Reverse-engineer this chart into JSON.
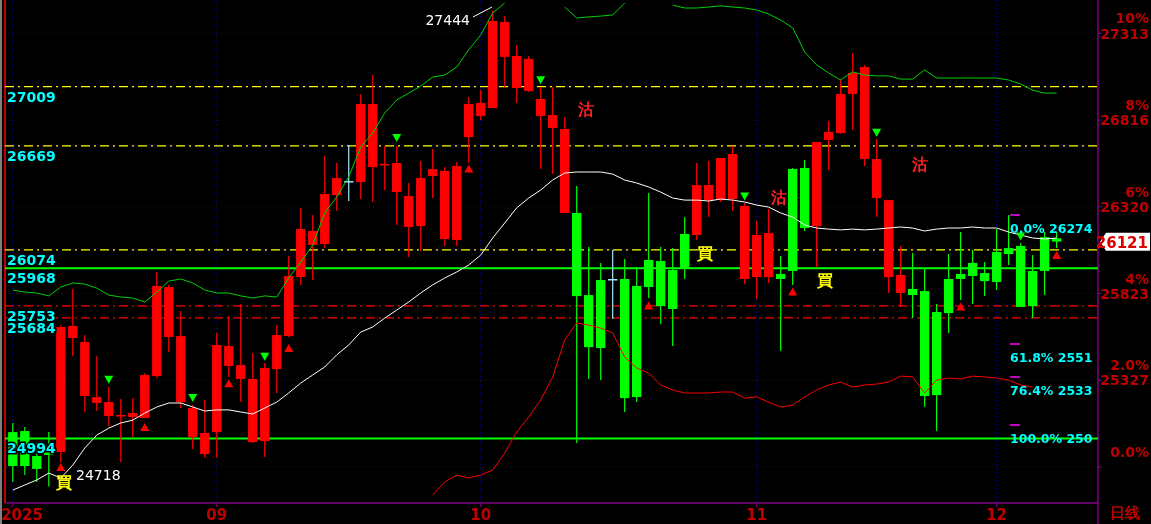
{
  "chart_data": {
    "type": "candlestick",
    "categories": [
      "2025",
      null,
      null,
      null,
      null,
      null,
      null,
      null,
      null,
      null,
      null,
      null,
      null,
      null,
      null,
      null,
      null,
      "09",
      null,
      null,
      null,
      null,
      null,
      null,
      null,
      null,
      null,
      null,
      null,
      null,
      null,
      null,
      null,
      null,
      null,
      null,
      null,
      null,
      null,
      "10",
      null,
      null,
      null,
      null,
      null,
      null,
      null,
      null,
      null,
      null,
      null,
      null,
      null,
      null,
      null,
      null,
      null,
      null,
      null,
      null,
      null,
      null,
      "11",
      null,
      null,
      null,
      null,
      null,
      null,
      null,
      null,
      null,
      null,
      null,
      null,
      null,
      null,
      null,
      null,
      null,
      null,
      null,
      "12",
      null,
      null,
      null,
      null,
      null
    ],
    "ohlc": [
      [
        25030,
        25082,
        24744,
        24836
      ],
      [
        25036,
        25059,
        24784,
        24836
      ],
      [
        24893,
        24968,
        24744,
        24819
      ],
      [
        24933,
        25030,
        24718,
        24899
      ],
      [
        24916,
        25643,
        24859,
        25632
      ],
      [
        25569,
        25850,
        25466,
        25638
      ],
      [
        25237,
        25586,
        25145,
        25546
      ],
      [
        25197,
        25466,
        25151,
        25231
      ],
      [
        25122,
        25288,
        25065,
        25202
      ],
      [
        25128,
        25220,
        24859,
        25128
      ],
      [
        25116,
        25225,
        25002,
        25139
      ],
      [
        25111,
        25368,
        25111,
        25357
      ],
      [
        25351,
        25947,
        25340,
        25867
      ],
      [
        25575,
        25873,
        25489,
        25861
      ],
      [
        25202,
        25724,
        25168,
        25580
      ],
      [
        25002,
        25185,
        24933,
        25168
      ],
      [
        24904,
        25214,
        24882,
        25025
      ],
      [
        25030,
        25598,
        24882,
        25529
      ],
      [
        25409,
        25695,
        25346,
        25523
      ],
      [
        25334,
        25764,
        25202,
        25414
      ],
      [
        24973,
        25483,
        24968,
        25334
      ],
      [
        24979,
        25426,
        24887,
        25397
      ],
      [
        25391,
        25643,
        25254,
        25586
      ],
      [
        25580,
        26039,
        25575,
        25924
      ],
      [
        25918,
        26314,
        25873,
        26193
      ],
      [
        26102,
        26273,
        25901,
        26182
      ],
      [
        26107,
        26611,
        26084,
        26394
      ],
      [
        26388,
        26571,
        26296,
        26485
      ],
      [
        26468,
        26674,
        26354,
        26468
      ],
      [
        26463,
        26967,
        26365,
        26909
      ],
      [
        26548,
        27075,
        26348,
        26909
      ],
      [
        26566,
        26669,
        26417,
        26566
      ],
      [
        26405,
        26669,
        26216,
        26571
      ],
      [
        26205,
        26457,
        26033,
        26382
      ],
      [
        26210,
        26583,
        26067,
        26485
      ],
      [
        26497,
        26652,
        26371,
        26537
      ],
      [
        26136,
        26548,
        26096,
        26526
      ],
      [
        26130,
        26577,
        26096,
        26554
      ],
      [
        26720,
        26949,
        26571,
        26909
      ],
      [
        26841,
        26989,
        26818,
        26915
      ],
      [
        26886,
        27444,
        26886,
        27385
      ],
      [
        27179,
        27413,
        27007,
        27379
      ],
      [
        27001,
        27247,
        26915,
        27184
      ],
      [
        26984,
        27184,
        26978,
        27167
      ],
      [
        26841,
        27007,
        26537,
        26938
      ],
      [
        26772,
        27007,
        26508,
        26846
      ],
      [
        26285,
        26835,
        26285,
        26766
      ],
      [
        26285,
        26440,
        24968,
        25809
      ],
      [
        25815,
        26090,
        25334,
        25517
      ],
      [
        25901,
        25999,
        25328,
        25512
      ],
      [
        25907,
        26073,
        25678,
        25907
      ],
      [
        25907,
        26021,
        25145,
        25225
      ],
      [
        25867,
        25976,
        25202,
        25231
      ],
      [
        26016,
        26400,
        25798,
        25861
      ],
      [
        26010,
        26090,
        25649,
        25752
      ],
      [
        25958,
        26084,
        25523,
        25735
      ],
      [
        26165,
        26262,
        25907,
        25970
      ],
      [
        26159,
        26571,
        26130,
        26445
      ],
      [
        26359,
        26583,
        26262,
        26445
      ],
      [
        26359,
        26600,
        26348,
        26600
      ],
      [
        26365,
        26669,
        26296,
        26623
      ],
      [
        25907,
        26342,
        25878,
        26325
      ],
      [
        25918,
        26239,
        25792,
        26159
      ],
      [
        25918,
        26308,
        25884,
        26170
      ],
      [
        25936,
        26039,
        25494,
        25907
      ],
      [
        26537,
        26543,
        25873,
        25953
      ],
      [
        26543,
        26589,
        26182,
        26199
      ],
      [
        26210,
        26692,
        25976,
        26692
      ],
      [
        26703,
        26812,
        26531,
        26749
      ],
      [
        26743,
        27052,
        26737,
        26967
      ],
      [
        26967,
        27201,
        26760,
        27087
      ],
      [
        26594,
        27133,
        26554,
        27121
      ],
      [
        26371,
        26709,
        26262,
        26594
      ],
      [
        25918,
        26359,
        25827,
        26359
      ],
      [
        25827,
        26096,
        25747,
        25930
      ],
      [
        25850,
        26056,
        25683,
        25815
      ],
      [
        25838,
        25964,
        25174,
        25237
      ],
      [
        25718,
        25764,
        25036,
        25242
      ],
      [
        25907,
        26050,
        25598,
        25712
      ],
      [
        25936,
        26176,
        25787,
        25907
      ],
      [
        25999,
        26073,
        25764,
        25924
      ],
      [
        25941,
        26004,
        25810,
        25895
      ],
      [
        26062,
        26193,
        25844,
        25890
      ],
      [
        26084,
        26273,
        25987,
        26050
      ],
      [
        26096,
        26113,
        25747,
        25747
      ],
      [
        25953,
        26044,
        25683,
        25752
      ],
      [
        26147,
        26176,
        25815,
        25953
      ],
      [
        26140,
        26176,
        26084,
        26121
      ]
    ],
    "colors": [
      "#00ff00",
      "#00ff00",
      "#00ff00",
      "#00ff00",
      "#ff0000",
      "#ff0000",
      "#ff0000",
      "#ff0000",
      "#ff0000",
      "#ff0000",
      "#ff0000",
      "#ff0000",
      "#ff0000",
      "#ff0000",
      "#ff0000",
      "#ff0000",
      "#ff0000",
      "#ff0000",
      "#ff0000",
      "#ff0000",
      "#ff0000",
      "#ff0000",
      "#ff0000",
      "#ff0000",
      "#ff0000",
      "#ff0000",
      "#ff0000",
      "#ff0000",
      "#a0e8ff",
      "#ff0000",
      "#ff0000",
      "#ff0000",
      "#ff0000",
      "#ff0000",
      "#ff0000",
      "#ff0000",
      "#ff0000",
      "#ff0000",
      "#ff0000",
      "#ff0000",
      "#ff0000",
      "#ff0000",
      "#ff0000",
      "#ff0000",
      "#ff0000",
      "#ff0000",
      "#ff0000",
      "#00ff00",
      "#00ff00",
      "#00ff00",
      "#a0e8ff",
      "#00ff00",
      "#00ff00",
      "#00ff00",
      "#00ff00",
      "#00ff00",
      "#00ff00",
      "#ff0000",
      "#ff0000",
      "#ff0000",
      "#ff0000",
      "#ff0000",
      "#ff0000",
      "#ff0000",
      "#00ff00",
      "#00ff00",
      "#00ff00",
      "#ff0000",
      "#ff0000",
      "#ff0000",
      "#ff0000",
      "#ff0000",
      "#ff0000",
      "#ff0000",
      "#ff0000",
      "#00ff00",
      "#00ff00",
      "#00ff00",
      "#00ff00",
      "#00ff00",
      "#00ff00",
      "#00ff00",
      "#00ff00",
      "#00ff00",
      "#00ff00",
      "#00ff00",
      "#00ff00",
      "#00ff00"
    ],
    "series": [
      {
        "type": "line",
        "color": "#00d000",
        "values": [
          25844,
          25832,
          25827,
          25810,
          25861,
          25884,
          25878,
          25855,
          25815,
          25804,
          25798,
          25775,
          25832,
          25895,
          25907,
          25884,
          25844,
          25827,
          25827,
          25810,
          25798,
          25810,
          25804,
          25913,
          26004,
          26102,
          26285,
          26377,
          26491,
          26663,
          26743,
          26858,
          26932,
          26972,
          27012,
          27064,
          27075,
          27121,
          27219,
          27305,
          27431,
          27488,
          null,
          null,
          null,
          null,
          27465,
          27402,
          27408,
          27413,
          27419,
          27488,
          null,
          null,
          null,
          27476,
          27459,
          27459,
          27465,
          27471,
          27465,
          27459,
          27448,
          27425,
          27390,
          27345,
          27207,
          27133,
          27087,
          27047,
          27093,
          27075,
          27070,
          27070,
          27052,
          27052,
          27104,
          27058,
          27058,
          27058,
          27058,
          27058,
          27058,
          27047,
          27024,
          26989,
          26972,
          26972
        ]
      },
      {
        "type": "line",
        "color": "#ffffff",
        "values": [
          24698,
          24727,
          24756,
          24796,
          24767,
          24841,
          24939,
          25013,
          25053,
          25082,
          25099,
          25139,
          25174,
          25197,
          25197,
          25174,
          25151,
          25157,
          25157,
          25145,
          25134,
          25168,
          25202,
          25254,
          25311,
          25357,
          25403,
          25472,
          25529,
          25603,
          25632,
          25683,
          25729,
          25775,
          25827,
          25873,
          25913,
          25947,
          25987,
          26044,
          26142,
          26228,
          26314,
          26371,
          26417,
          26474,
          26514,
          26520,
          26520,
          26520,
          26508,
          26474,
          26457,
          26434,
          26405,
          26371,
          26359,
          26359,
          26354,
          26365,
          26359,
          26348,
          26331,
          26319,
          26285,
          26262,
          26216,
          26199,
          26193,
          26188,
          26193,
          26188,
          26193,
          26199,
          26205,
          26199,
          26182,
          26193,
          26199,
          26199,
          26205,
          26199,
          26199,
          26176,
          26159,
          26142,
          26136,
          26142
        ]
      },
      {
        "type": "line",
        "color": "#ff0000",
        "values": [
          null,
          null,
          null,
          null,
          null,
          null,
          null,
          null,
          null,
          null,
          null,
          null,
          null,
          null,
          null,
          null,
          null,
          null,
          null,
          null,
          null,
          null,
          null,
          null,
          null,
          null,
          null,
          null,
          null,
          null,
          null,
          null,
          null,
          null,
          null,
          24670,
          24744,
          24784,
          24767,
          24784,
          24813,
          24910,
          25030,
          25116,
          25214,
          25346,
          25557,
          25655,
          25643,
          25626,
          25598,
          25460,
          25397,
          25368,
          25300,
          25271,
          25254,
          25254,
          25254,
          25260,
          25260,
          25225,
          25231,
          25202,
          25174,
          25185,
          25231,
          25271,
          25300,
          25317,
          25288,
          25300,
          25305,
          25317,
          25351,
          25346,
          25254,
          25328,
          25340,
          25334,
          25351,
          25346,
          25340,
          25328,
          25300,
          25288,
          null,
          null
        ]
      },
      {
        "type": "scatter",
        "color": "#ff0000",
        "marker": "triangle",
        "values": [
          null,
          null,
          null,
          null,
          24830,
          null,
          null,
          null,
          null,
          null,
          null,
          25059,
          null,
          null,
          null,
          null,
          null,
          null,
          25310,
          null,
          null,
          null,
          null,
          25512,
          null,
          null,
          null,
          null,
          null,
          null,
          null,
          null,
          null,
          null,
          null,
          null,
          null,
          null,
          26540,
          null,
          null,
          null,
          null,
          null,
          null,
          null,
          null,
          null,
          null,
          null,
          null,
          null,
          null,
          25755,
          null,
          null,
          null,
          null,
          null,
          null,
          null,
          null,
          null,
          null,
          null,
          25835,
          null,
          null,
          null,
          null,
          null,
          null,
          null,
          null,
          null,
          null,
          null,
          null,
          null,
          25750,
          null,
          null,
          null,
          null,
          null,
          null,
          null,
          26045
        ]
      },
      {
        "type": "scatter",
        "color": "#00ff00",
        "marker": "triangle",
        "values": [
          null,
          null,
          null,
          null,
          null,
          null,
          null,
          null,
          25330,
          null,
          null,
          null,
          null,
          null,
          null,
          25225,
          null,
          null,
          null,
          null,
          null,
          25462,
          null,
          null,
          null,
          null,
          null,
          null,
          null,
          null,
          null,
          null,
          26715,
          null,
          null,
          null,
          null,
          null,
          null,
          null,
          null,
          null,
          null,
          null,
          27045,
          null,
          null,
          null,
          null,
          null,
          null,
          null,
          null,
          null,
          null,
          null,
          null,
          null,
          null,
          null,
          null,
          26380,
          null,
          null,
          null,
          null,
          null,
          null,
          null,
          null,
          null,
          null,
          26745,
          null,
          null,
          null,
          null,
          null,
          null,
          null,
          null,
          null,
          null,
          null,
          26150,
          null,
          null,
          null
        ]
      }
    ],
    "ylim": [
      24624,
      27505
    ],
    "yticks": [
      27313,
      26816,
      26320,
      25823,
      25327
    ],
    "y2lim": [
      -0.83,
      10.77
    ],
    "y2ticks": [
      {
        "value": 10,
        "label": "10%"
      },
      {
        "value": 8,
        "label": "8%"
      },
      {
        "value": 6,
        "label": "6%"
      },
      {
        "value": 4,
        "label": "4%"
      },
      {
        "value": 2,
        "label": "2.0%"
      },
      {
        "value": 0,
        "label": "0.0%"
      }
    ],
    "grid": true,
    "ref_lines": [
      {
        "axis": "y",
        "value": 27009,
        "label": "27009",
        "color": "#ffff00",
        "line_style": "dashed"
      },
      {
        "axis": "y",
        "value": 26669,
        "label": "26669",
        "color": "#ffff00",
        "line_style": "dashed"
      },
      {
        "axis": "y",
        "value": 26074,
        "label": "26074",
        "color": "#ffff00",
        "line_style": "dashed"
      },
      {
        "axis": "y",
        "value": 25968,
        "label": "25968",
        "color": "#00ff00",
        "line_style": "solid"
      },
      {
        "axis": "y",
        "value": 25753,
        "label": "25753",
        "color": "#ff0000",
        "line_style": "dashed"
      },
      {
        "axis": "y",
        "value": 25684,
        "label": "25684",
        "color": "#ff0000",
        "line_style": "dashed"
      },
      {
        "axis": "y",
        "value": 24994,
        "label": "24994",
        "color": "#00ff00",
        "line_style": "solid"
      }
    ],
    "annotations": [
      "27444",
      "24718",
      "買",
      "買",
      "買",
      "沽",
      "沽",
      "沽",
      "0.0% 26274",
      "61.8% 2551",
      "76.4% 2533",
      "100.0% 250",
      "26121",
      "日线"
    ]
  }
}
